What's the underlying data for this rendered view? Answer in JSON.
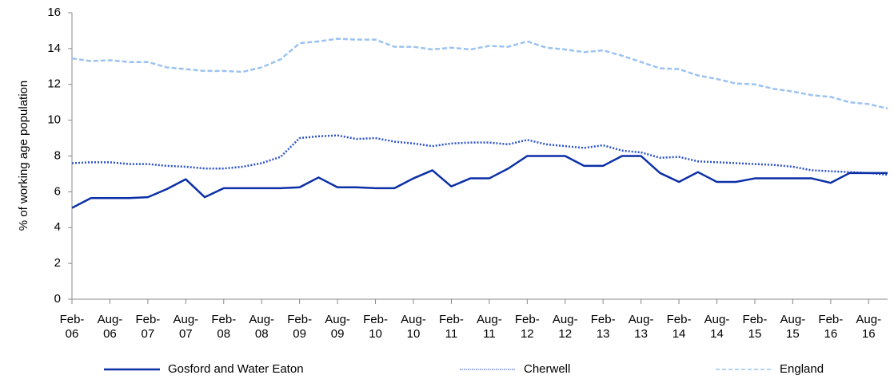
{
  "chart_data": {
    "type": "line",
    "y_axis_label": "% of working age population",
    "categories": [
      "Feb-06",
      null,
      "Aug-06",
      null,
      "Feb-07",
      null,
      "Aug-07",
      null,
      "Feb-08",
      null,
      "Aug-08",
      null,
      "Feb-09",
      null,
      "Aug-09",
      null,
      "Feb-10",
      null,
      "Aug-10",
      null,
      "Feb-11",
      null,
      "Aug-11",
      null,
      "Feb-12",
      null,
      "Aug-12",
      null,
      "Feb-13",
      null,
      "Aug-13",
      null,
      "Feb-14",
      null,
      "Aug-14",
      null,
      "Feb-15",
      null,
      "Aug-15",
      null,
      "Feb-16",
      null,
      "Aug-16",
      null
    ],
    "ylim": [
      0,
      16
    ],
    "yticks": [
      0,
      2,
      4,
      6,
      8,
      10,
      12,
      14,
      16
    ],
    "grid": false,
    "legend": "bottom",
    "series": [
      {
        "name": "Gosford and Water Eaton",
        "color": "#0b2fa6",
        "style": "solid",
        "values": [
          5.1,
          5.65,
          5.65,
          5.65,
          5.7,
          6.15,
          6.7,
          5.7,
          6.2,
          6.2,
          6.2,
          6.2,
          6.25,
          6.8,
          6.25,
          6.25,
          6.2,
          6.2,
          6.75,
          7.2,
          6.3,
          6.75,
          6.75,
          7.3,
          8.0,
          8.0,
          8.0,
          7.45,
          7.45,
          8.0,
          8.0,
          7.05,
          6.55,
          7.1,
          6.55,
          6.55,
          6.75,
          6.75,
          6.75,
          6.75,
          6.5,
          7.05,
          7.05,
          7.05
        ]
      },
      {
        "name": "Cherwell",
        "color": "#2a52c9",
        "style": "dotted",
        "values": [
          7.6,
          7.65,
          7.65,
          7.55,
          7.55,
          7.45,
          7.4,
          7.3,
          7.3,
          7.4,
          7.6,
          7.95,
          9.0,
          9.1,
          9.15,
          8.95,
          9.0,
          8.8,
          8.7,
          8.55,
          8.7,
          8.75,
          8.75,
          8.65,
          8.9,
          8.65,
          8.55,
          8.45,
          8.6,
          8.3,
          8.2,
          7.9,
          7.95,
          7.7,
          7.65,
          7.6,
          7.55,
          7.5,
          7.4,
          7.2,
          7.15,
          7.1,
          7.05,
          6.95
        ]
      },
      {
        "name": "England",
        "color": "#9cc3f0",
        "style": "dashed",
        "values": [
          13.45,
          13.3,
          13.35,
          13.25,
          13.25,
          12.95,
          12.85,
          12.75,
          12.75,
          12.7,
          12.95,
          13.4,
          14.3,
          14.4,
          14.55,
          14.5,
          14.5,
          14.1,
          14.1,
          13.95,
          14.05,
          13.95,
          14.15,
          14.1,
          14.4,
          14.05,
          13.95,
          13.8,
          13.9,
          13.6,
          13.25,
          12.9,
          12.85,
          12.5,
          12.3,
          12.05,
          12.0,
          11.75,
          11.6,
          11.4,
          11.3,
          11.0,
          10.9,
          10.65
        ]
      }
    ]
  }
}
